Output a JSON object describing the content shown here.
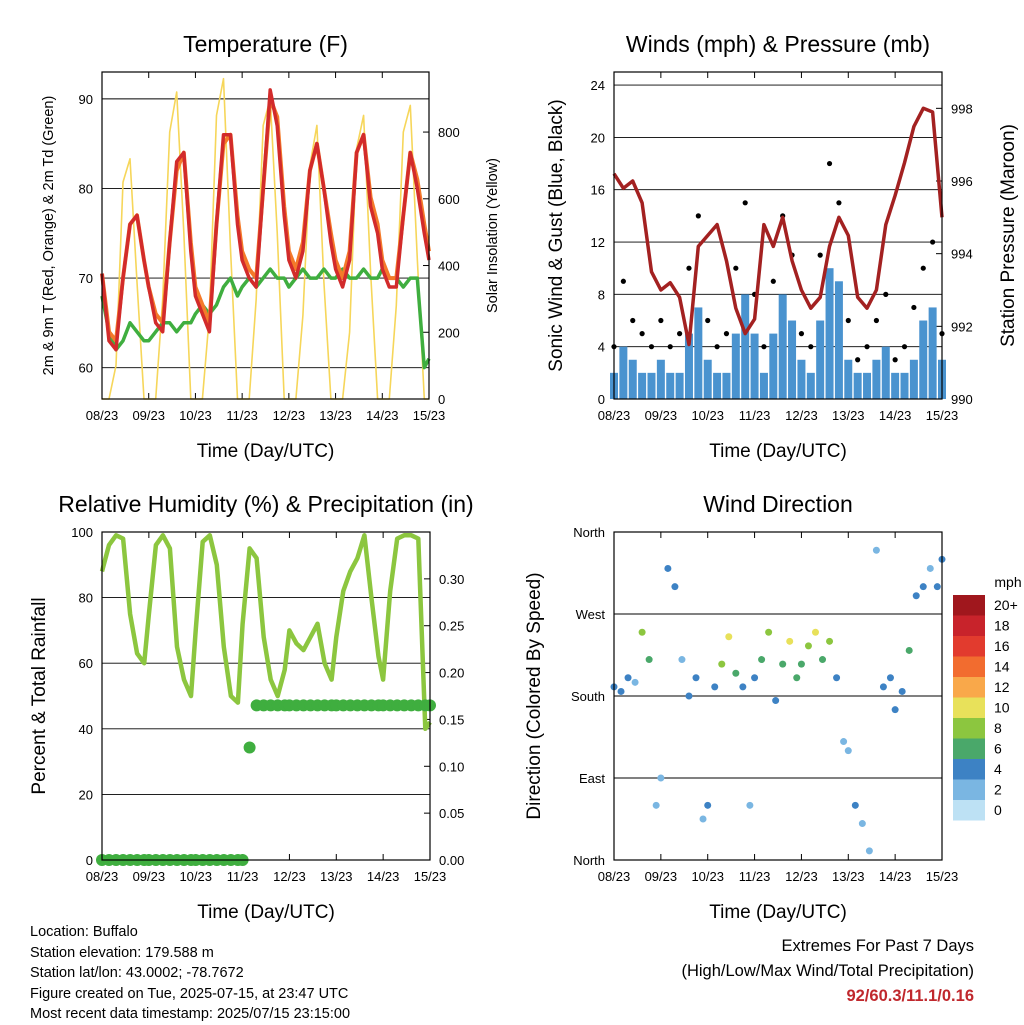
{
  "colors": {
    "temp2m": "#d22b2b",
    "temp9m": "#f47a2a",
    "dewpoint": "#3fae3f",
    "solar": "#f6d65a",
    "wind": "#4a93cf",
    "gust": "#000000",
    "pressure": "#a32121",
    "rh": "#8cc63f",
    "rain": "#3fae3f",
    "extremes": "#c0282d"
  },
  "x_ticks": [
    "08/23",
    "09/23",
    "10/23",
    "11/23",
    "12/23",
    "13/23",
    "14/23",
    "15/23"
  ],
  "chart_data": [
    {
      "type": "line",
      "title": "Temperature (F)",
      "xlabel": "Time (Day/UTC)",
      "ylabel": "2m & 9m T (Red, Orange) & 2m Td (Green)",
      "ylabel_right": "Solar Insolation (Yellow)",
      "ylim": [
        56.5,
        93
      ],
      "ylim_right": [
        0,
        980
      ],
      "y_ticks": [
        60,
        70,
        80,
        90
      ],
      "y_ticks_right": [
        0,
        200,
        400,
        600,
        800
      ],
      "grid": true,
      "x_day": [
        0,
        0.15,
        0.3,
        0.45,
        0.6,
        0.75,
        0.9,
        1.0,
        1.15,
        1.3,
        1.45,
        1.6,
        1.75,
        1.9,
        2.0,
        2.15,
        2.3,
        2.45,
        2.6,
        2.75,
        2.9,
        3.0,
        3.15,
        3.3,
        3.45,
        3.6,
        3.75,
        3.9,
        4.0,
        4.15,
        4.3,
        4.45,
        4.6,
        4.75,
        4.9,
        5.0,
        5.15,
        5.3,
        5.45,
        5.6,
        5.75,
        5.9,
        6.0,
        6.15,
        6.3,
        6.45,
        6.6,
        6.75,
        6.9,
        7.0
      ],
      "series": [
        {
          "name": "2m T",
          "values": [
            70.5,
            63,
            62,
            70,
            76,
            77,
            72,
            69,
            65,
            64,
            74,
            83,
            84,
            73,
            68,
            66,
            64,
            76,
            86,
            86,
            76,
            72,
            70,
            69,
            80,
            91,
            87,
            77,
            72,
            70,
            73,
            82,
            85,
            80,
            74,
            71,
            69,
            72,
            84,
            86,
            78,
            75,
            71,
            69,
            69,
            77,
            84,
            80,
            75,
            72
          ]
        },
        {
          "name": "9m T",
          "values": [
            70.5,
            64,
            63,
            70,
            76,
            77,
            72,
            69,
            66,
            65,
            74,
            82,
            84,
            74,
            69,
            67,
            65,
            76,
            85,
            86,
            77,
            73,
            71,
            70,
            80,
            90,
            88,
            78,
            73,
            71,
            74,
            82,
            85,
            80,
            75,
            72,
            70,
            73,
            84,
            86,
            79,
            76,
            72,
            70,
            70,
            77,
            84,
            81,
            76,
            73
          ]
        },
        {
          "name": "2m Td",
          "values": [
            68,
            64,
            62,
            63,
            65,
            64,
            63,
            63,
            64,
            65,
            65,
            64,
            65,
            65,
            66,
            67,
            66,
            67,
            69,
            70,
            68,
            69,
            70,
            69,
            70,
            71,
            70,
            70,
            69,
            70,
            71,
            70,
            70,
            71,
            70,
            70,
            71,
            70,
            70,
            71,
            70,
            70,
            71,
            70,
            70,
            69,
            70,
            70,
            60,
            61
          ]
        },
        {
          "name": "Solar",
          "values": [
            0,
            0,
            100,
            650,
            720,
            350,
            0,
            0,
            0,
            300,
            800,
            920,
            500,
            0,
            0,
            0,
            250,
            850,
            960,
            450,
            0,
            0,
            0,
            300,
            820,
            900,
            500,
            0,
            0,
            0,
            250,
            700,
            820,
            350,
            0,
            0,
            0,
            200,
            750,
            850,
            380,
            0,
            0,
            0,
            280,
            800,
            880,
            420,
            0,
            0
          ]
        }
      ]
    },
    {
      "type": "scatter",
      "title": "Winds (mph) & Pressure (mb)",
      "xlabel": "Time (Day/UTC)",
      "ylabel": "Sonic Wind & Gust (Blue, Black)",
      "ylabel_right": "Station Pressure (Maroon)",
      "ylim": [
        0,
        25
      ],
      "ylim_right": [
        990,
        999
      ],
      "y_ticks": [
        0,
        4,
        8,
        12,
        16,
        20,
        24
      ],
      "y_ticks_right": [
        990,
        992,
        994,
        996,
        998
      ],
      "grid": true,
      "x_day": [
        0,
        0.2,
        0.4,
        0.6,
        0.8,
        1.0,
        1.2,
        1.4,
        1.6,
        1.8,
        2.0,
        2.2,
        2.4,
        2.6,
        2.8,
        3.0,
        3.2,
        3.4,
        3.6,
        3.8,
        4.0,
        4.2,
        4.4,
        4.6,
        4.8,
        5.0,
        5.2,
        5.4,
        5.6,
        5.8,
        6.0,
        6.2,
        6.4,
        6.6,
        6.8,
        7.0
      ],
      "series": [
        {
          "name": "Sonic Wind",
          "values": [
            2,
            4,
            3,
            2,
            2,
            3,
            2,
            2,
            5,
            7,
            3,
            2,
            2,
            5,
            8,
            5,
            2,
            5,
            8,
            6,
            3,
            2,
            6,
            10,
            9,
            3,
            2,
            2,
            3,
            4,
            2,
            2,
            3,
            6,
            7,
            3
          ]
        },
        {
          "name": "Gust",
          "values": [
            4,
            9,
            6,
            5,
            4,
            6,
            4,
            5,
            10,
            14,
            6,
            4,
            5,
            10,
            15,
            8,
            4,
            9,
            14,
            11,
            5,
            4,
            11,
            18,
            15,
            6,
            3,
            4,
            6,
            8,
            3,
            4,
            7,
            10,
            12,
            5
          ]
        },
        {
          "name": "Pressure",
          "values": [
            996.2,
            995.8,
            996.0,
            995.4,
            993.5,
            993.0,
            993.2,
            992.8,
            991.5,
            994.2,
            994.5,
            994.8,
            993.8,
            992.5,
            991.8,
            992.2,
            994.8,
            994.2,
            995.0,
            993.8,
            993.0,
            992.5,
            992.8,
            994.2,
            995.0,
            994.5,
            992.8,
            992.5,
            993.0,
            994.8,
            995.6,
            996.5,
            997.5,
            998.0,
            997.9,
            995.0
          ]
        }
      ]
    },
    {
      "type": "line",
      "title": "Relative Humidity (%) & Precipitation (in)",
      "xlabel": "Time (Day/UTC)",
      "ylabel": "Percent & Total Rainfall",
      "ylim": [
        0,
        100
      ],
      "ylim_right": [
        0,
        0.35
      ],
      "y_ticks": [
        0,
        20,
        40,
        60,
        80,
        100
      ],
      "y_ticks_right": [
        "0.00",
        "0.05",
        "0.10",
        "0.15",
        "0.20",
        "0.25",
        "0.30"
      ],
      "grid": true,
      "x_day": [
        0,
        0.15,
        0.3,
        0.45,
        0.6,
        0.75,
        0.9,
        1.0,
        1.15,
        1.3,
        1.45,
        1.6,
        1.75,
        1.9,
        2.0,
        2.15,
        2.3,
        2.45,
        2.6,
        2.75,
        2.9,
        3.0,
        3.15,
        3.3,
        3.45,
        3.6,
        3.75,
        3.9,
        4.0,
        4.15,
        4.3,
        4.45,
        4.6,
        4.75,
        4.9,
        5.0,
        5.15,
        5.3,
        5.45,
        5.6,
        5.75,
        5.9,
        6.0,
        6.15,
        6.3,
        6.45,
        6.6,
        6.75,
        6.9,
        7.0
      ],
      "series": [
        {
          "name": "RH",
          "values": [
            88,
            96,
            99,
            98,
            75,
            63,
            60,
            75,
            96,
            99,
            95,
            65,
            55,
            50,
            70,
            97,
            99,
            90,
            65,
            50,
            48,
            72,
            95,
            92,
            68,
            55,
            50,
            58,
            70,
            66,
            64,
            68,
            72,
            60,
            55,
            68,
            82,
            88,
            92,
            99,
            80,
            62,
            55,
            82,
            98,
            99,
            99,
            98,
            40,
            42
          ]
        },
        {
          "name": "Rain",
          "values": [
            0,
            0,
            0,
            0,
            0,
            0,
            0,
            0,
            0,
            0,
            0,
            0,
            0,
            0,
            0,
            0,
            0,
            0,
            0,
            0,
            0,
            0,
            0.12,
            0.165,
            0.165,
            0.165,
            0.165,
            0.165,
            0.165,
            0.165,
            0.165,
            0.165,
            0.165,
            0.165,
            0.165,
            0.165,
            0.165,
            0.165,
            0.165,
            0.165,
            0.165,
            0.165,
            0.165,
            0.165,
            0.165,
            0.165,
            0.165,
            0.165,
            0.165,
            0.165
          ]
        }
      ]
    },
    {
      "type": "scatter",
      "title": "Wind Direction",
      "xlabel": "Time (Day/UTC)",
      "ylabel": "Direction (Colored By Speed)",
      "y_ticks": [
        "North",
        "East",
        "South",
        "West",
        "North"
      ],
      "legend_title": "mph",
      "legend_labels": [
        "20+",
        "18",
        "16",
        "14",
        "12",
        "10",
        "8",
        "6",
        "4",
        "2",
        "0"
      ],
      "legend_colors": [
        "#a0171d",
        "#c8232b",
        "#e23b2e",
        "#f26c2f",
        "#f9a84a",
        "#e8e15a",
        "#8cc63f",
        "#4aa86a",
        "#3d82c4",
        "#7ab6e2",
        "#bde1f4"
      ],
      "grid": true,
      "x_day": [
        0,
        0.15,
        0.3,
        0.45,
        0.6,
        0.75,
        0.9,
        1.0,
        1.15,
        1.3,
        1.45,
        1.6,
        1.75,
        1.9,
        2.0,
        2.15,
        2.3,
        2.45,
        2.6,
        2.75,
        2.9,
        3.0,
        3.15,
        3.3,
        3.45,
        3.6,
        3.75,
        3.9,
        4.0,
        4.15,
        4.3,
        4.45,
        4.6,
        4.75,
        4.9,
        5.0,
        5.15,
        5.3,
        5.45,
        5.6,
        5.75,
        5.9,
        6.0,
        6.15,
        6.3,
        6.45,
        6.6,
        6.75,
        6.9,
        7.0
      ],
      "direction_deg": [
        190,
        185,
        200,
        195,
        250,
        220,
        60,
        90,
        320,
        300,
        220,
        180,
        200,
        45,
        60,
        190,
        215,
        245,
        205,
        190,
        60,
        200,
        220,
        250,
        175,
        215,
        240,
        200,
        215,
        235,
        250,
        220,
        240,
        200,
        130,
        120,
        60,
        40,
        10,
        340,
        190,
        200,
        165,
        185,
        230,
        290,
        300,
        320,
        300,
        330
      ],
      "speed_mph": [
        3,
        4,
        3,
        2,
        7,
        5,
        2,
        2,
        3,
        3,
        2,
        3,
        4,
        2,
        3,
        4,
        7,
        9,
        5,
        3,
        2,
        3,
        6,
        8,
        4,
        6,
        9,
        6,
        5,
        7,
        9,
        6,
        8,
        4,
        2,
        2,
        3,
        2,
        2,
        1,
        3,
        4,
        3,
        3,
        5,
        4,
        3,
        2,
        3,
        4
      ]
    }
  ],
  "info": {
    "location": "Location: Buffalo",
    "elevation": "Station elevation: 179.588 m",
    "latlon": "Station lat/lon: 43.0002; -78.7672",
    "created": "Figure created on Tue, 2025-07-15, at 23:47 UTC",
    "recent": "Most recent data timestamp: 2025/07/15 23:15:00"
  },
  "extremes": {
    "line1": "Extremes For Past 7 Days",
    "line2": "(High/Low/Max Wind/Total Precipitation)",
    "values": "92/60.3/11.1/0.16"
  }
}
